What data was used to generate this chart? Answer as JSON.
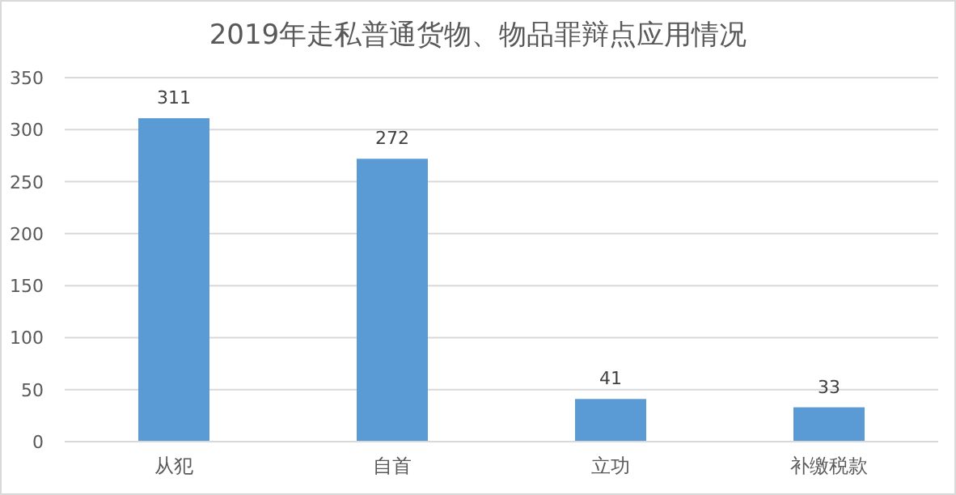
{
  "chart_data": {
    "type": "bar",
    "title": "2019年走私普通货物、物品罪辩点应用情况",
    "categories": [
      "从犯",
      "自首",
      "立功",
      "补缴税款"
    ],
    "values": [
      311,
      272,
      41,
      33
    ],
    "color": "#5b9bd5",
    "ylim": [
      0,
      350
    ],
    "yticks": [
      0,
      50,
      100,
      150,
      200,
      250,
      300,
      350
    ],
    "grid": "y",
    "data_labels": true
  }
}
